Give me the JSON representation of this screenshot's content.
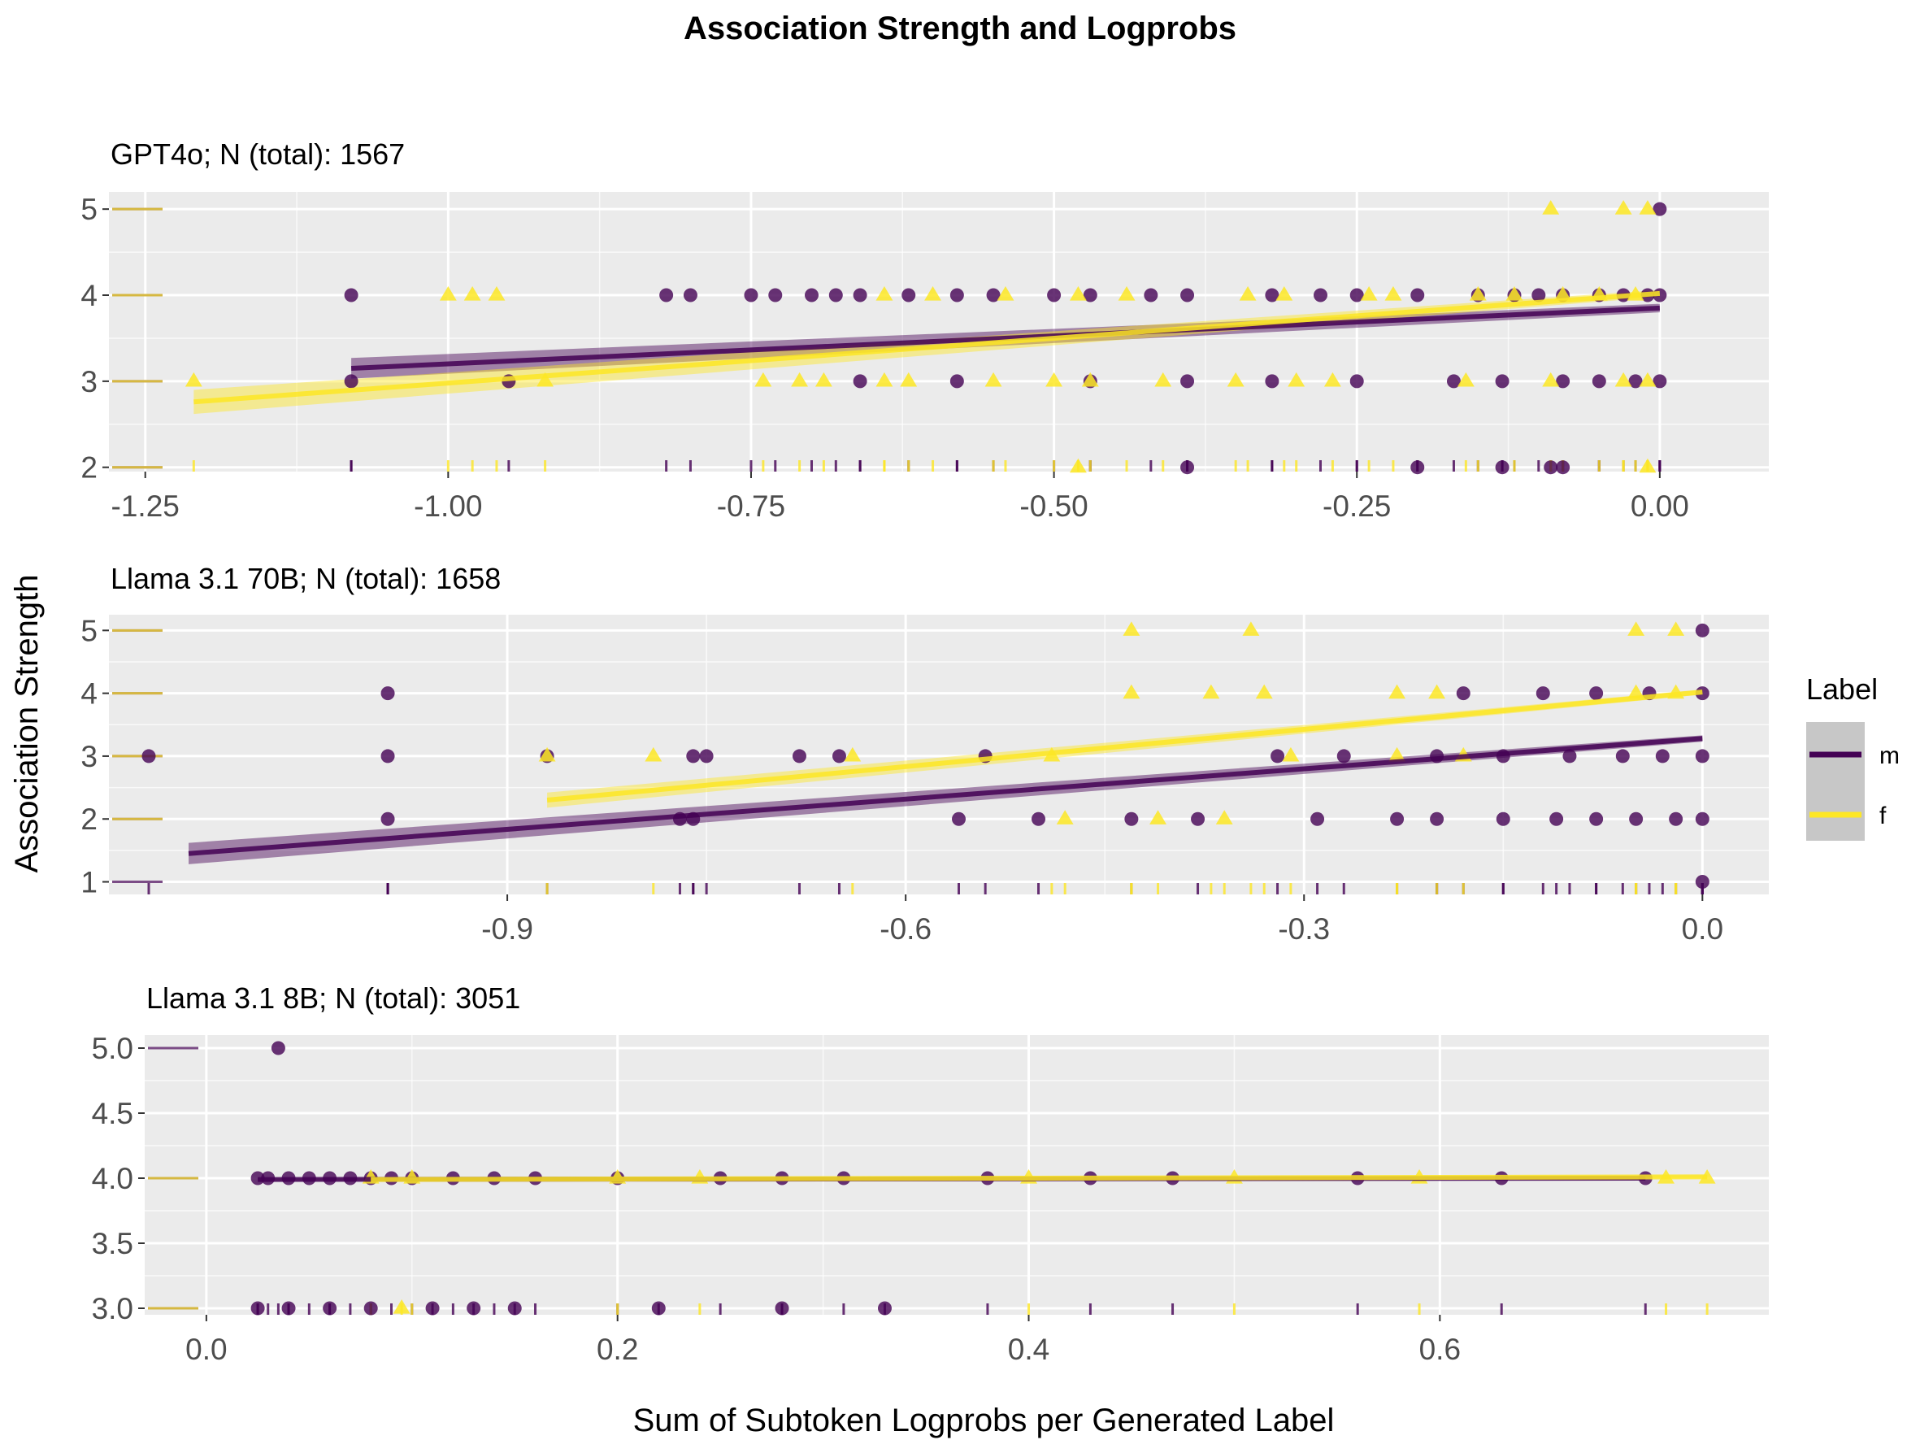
{
  "title": "Association Strength and Logprobs",
  "xlabel": "Sum of Subtoken Logprobs per Generated Label",
  "ylabel": "Association Strength",
  "legend": {
    "title": "Label",
    "placement": "right",
    "entries": [
      {
        "key": "m",
        "label": "m",
        "color": "#440154"
      },
      {
        "key": "f",
        "label": "f",
        "color": "#FDE725"
      }
    ]
  },
  "colors": {
    "panel_bg": "#EBEBEB",
    "grid": "#FFFFFF",
    "m": "#440154",
    "f": "#FDE725",
    "tick_text": "#4D4D4D"
  },
  "chart_data": [
    {
      "type": "scatter",
      "subtitle": "GPT4o; N (total): 1567",
      "xlim": [
        -1.28,
        0.09
      ],
      "ylim": [
        1.95,
        5.2
      ],
      "xticks": [
        -1.25,
        -1.0,
        -0.75,
        -0.5,
        -0.25,
        0.0
      ],
      "xtick_labels": [
        "-1.25",
        "-1.00",
        "-0.75",
        "-0.50",
        "-0.25",
        "0.00"
      ],
      "yticks": [
        2,
        3,
        4,
        5
      ],
      "ytick_labels": [
        "2",
        "3",
        "4",
        "5"
      ],
      "grid": true,
      "series": [
        {
          "name": "m",
          "marker": "circle",
          "x": [
            -1.08,
            -0.82,
            -0.8,
            -0.75,
            -0.73,
            -0.7,
            -0.68,
            -0.66,
            -0.62,
            -0.58,
            -0.55,
            -0.5,
            -0.47,
            -0.42,
            -0.39,
            -0.32,
            -0.28,
            -0.25,
            -0.2,
            -0.15,
            -0.12,
            -0.1,
            -0.08,
            -0.05,
            -0.03,
            -0.01,
            0.0,
            -1.08,
            -0.95,
            -0.66,
            -0.58,
            -0.47,
            -0.39,
            -0.32,
            -0.25,
            -0.17,
            -0.13,
            -0.08,
            -0.05,
            -0.02,
            0.0,
            -0.39,
            -0.2,
            -0.13,
            -0.09,
            -0.08,
            0.0
          ],
          "y": [
            4,
            4,
            4,
            4,
            4,
            4,
            4,
            4,
            4,
            4,
            4,
            4,
            4,
            4,
            4,
            4,
            4,
            4,
            4,
            4,
            4,
            4,
            4,
            4,
            4,
            4,
            4,
            3,
            3,
            3,
            3,
            3,
            3,
            3,
            3,
            3,
            3,
            3,
            3,
            3,
            3,
            2,
            2,
            2,
            2,
            2,
            5
          ]
        },
        {
          "name": "f",
          "marker": "triangle",
          "x": [
            -0.98,
            -1.0,
            -0.96,
            -0.64,
            -0.6,
            -0.54,
            -0.48,
            -0.44,
            -0.34,
            -0.31,
            -0.24,
            -0.22,
            -0.15,
            -0.12,
            -0.08,
            -0.05,
            -0.02,
            -1.21,
            -0.92,
            -0.74,
            -0.71,
            -0.69,
            -0.64,
            -0.62,
            -0.55,
            -0.5,
            -0.47,
            -0.41,
            -0.35,
            -0.3,
            -0.27,
            -0.16,
            -0.09,
            -0.03,
            -0.01,
            -0.09,
            -0.03,
            -0.01,
            -0.48,
            -0.01
          ],
          "y": [
            4,
            4,
            4,
            4,
            4,
            4,
            4,
            4,
            4,
            4,
            4,
            4,
            4,
            4,
            4,
            4,
            4,
            3,
            3,
            3,
            3,
            3,
            3,
            3,
            3,
            3,
            3,
            3,
            3,
            3,
            3,
            3,
            3,
            3,
            3,
            5,
            5,
            5,
            2,
            2
          ]
        }
      ],
      "trend": [
        {
          "name": "m",
          "x": [
            -1.08,
            0.0
          ],
          "y": [
            3.15,
            3.85
          ],
          "se": [
            0.12,
            0.05
          ]
        },
        {
          "name": "f",
          "x": [
            -1.21,
            0.0
          ],
          "y": [
            2.76,
            4.02
          ],
          "se": [
            0.14,
            0.04
          ]
        }
      ]
    },
    {
      "type": "scatter",
      "subtitle": "Llama 3.1 70B; N (total): 1658",
      "xlim": [
        -1.2,
        0.05
      ],
      "ylim": [
        0.8,
        5.25
      ],
      "xticks": [
        -0.9,
        -0.6,
        -0.3,
        0.0
      ],
      "xtick_labels": [
        "-0.9",
        "-0.6",
        "-0.3",
        "0.0"
      ],
      "yticks": [
        1,
        2,
        3,
        4,
        5
      ],
      "ytick_labels": [
        "1",
        "2",
        "3",
        "4",
        "5"
      ],
      "grid": true,
      "series": [
        {
          "name": "m",
          "marker": "circle",
          "x": [
            -1.17,
            -0.99,
            -0.87,
            -0.76,
            -0.75,
            -0.68,
            -0.65,
            -0.54,
            -0.32,
            -0.27,
            -0.2,
            -0.15,
            -0.1,
            -0.06,
            -0.03,
            0.0,
            -0.99,
            -0.77,
            -0.76,
            -0.56,
            -0.5,
            -0.43,
            -0.38,
            -0.29,
            -0.23,
            -0.2,
            -0.15,
            -0.11,
            -0.08,
            -0.05,
            -0.02,
            0.0,
            -0.99,
            -0.18,
            -0.12,
            -0.08,
            -0.04,
            0.0,
            0.0,
            0.0
          ],
          "y": [
            3,
            3,
            3,
            3,
            3,
            3,
            3,
            3,
            3,
            3,
            3,
            3,
            3,
            3,
            3,
            3,
            2,
            2,
            2,
            2,
            2,
            2,
            2,
            2,
            2,
            2,
            2,
            2,
            2,
            2,
            2,
            2,
            4,
            4,
            4,
            4,
            4,
            4,
            5,
            1
          ]
        },
        {
          "name": "f",
          "marker": "triangle",
          "x": [
            -0.43,
            -0.34,
            -0.43,
            -0.37,
            -0.33,
            -0.23,
            -0.2,
            -0.05,
            -0.02,
            -0.87,
            -0.79,
            -0.64,
            -0.49,
            -0.31,
            -0.23,
            -0.18,
            -0.48,
            -0.41,
            -0.36,
            -0.05,
            -0.02
          ],
          "y": [
            5,
            5,
            4,
            4,
            4,
            4,
            4,
            4,
            4,
            3,
            3,
            3,
            3,
            3,
            3,
            3,
            2,
            2,
            2,
            5,
            5
          ]
        }
      ],
      "trend": [
        {
          "name": "m",
          "x": [
            -1.14,
            0.0
          ],
          "y": [
            1.45,
            3.28
          ],
          "se": [
            0.17,
            0.05
          ]
        },
        {
          "name": "f",
          "x": [
            -0.87,
            0.0
          ],
          "y": [
            2.3,
            4.02
          ],
          "se": [
            0.12,
            0.04
          ]
        }
      ]
    },
    {
      "type": "scatter",
      "subtitle": "Llama 3.1 8B; N (total): 3051",
      "xlim": [
        -0.03,
        0.76
      ],
      "ylim": [
        2.95,
        5.1
      ],
      "xticks": [
        0.0,
        0.2,
        0.4,
        0.6
      ],
      "xtick_labels": [
        "0.0",
        "0.2",
        "0.4",
        "0.6"
      ],
      "yticks": [
        3.0,
        3.5,
        4.0,
        4.5,
        5.0
      ],
      "ytick_labels": [
        "3.0",
        "3.5",
        "4.0",
        "4.5",
        "5.0"
      ],
      "grid": true,
      "series": [
        {
          "name": "m",
          "marker": "circle",
          "x": [
            0.025,
            0.03,
            0.04,
            0.05,
            0.06,
            0.07,
            0.08,
            0.09,
            0.1,
            0.12,
            0.14,
            0.16,
            0.2,
            0.25,
            0.28,
            0.31,
            0.38,
            0.43,
            0.47,
            0.56,
            0.63,
            0.7,
            0.025,
            0.04,
            0.06,
            0.08,
            0.11,
            0.13,
            0.15,
            0.22,
            0.28,
            0.33,
            0.035
          ],
          "y": [
            4,
            4,
            4,
            4,
            4,
            4,
            4,
            4,
            4,
            4,
            4,
            4,
            4,
            4,
            4,
            4,
            4,
            4,
            4,
            4,
            4,
            4,
            3,
            3,
            3,
            3,
            3,
            3,
            3,
            3,
            3,
            3,
            5
          ]
        },
        {
          "name": "f",
          "marker": "triangle",
          "x": [
            0.08,
            0.1,
            0.2,
            0.24,
            0.4,
            0.5,
            0.59,
            0.71,
            0.73,
            0.095
          ],
          "y": [
            4,
            4,
            4,
            4,
            4,
            4,
            4,
            4,
            4,
            3
          ]
        }
      ],
      "trend": [
        {
          "name": "m",
          "x": [
            0.025,
            0.7
          ],
          "y": [
            3.99,
            4.0
          ],
          "se": [
            0.01,
            0.01
          ]
        },
        {
          "name": "f",
          "x": [
            0.08,
            0.73
          ],
          "y": [
            3.99,
            4.01
          ],
          "se": [
            0.015,
            0.01
          ]
        }
      ]
    }
  ]
}
